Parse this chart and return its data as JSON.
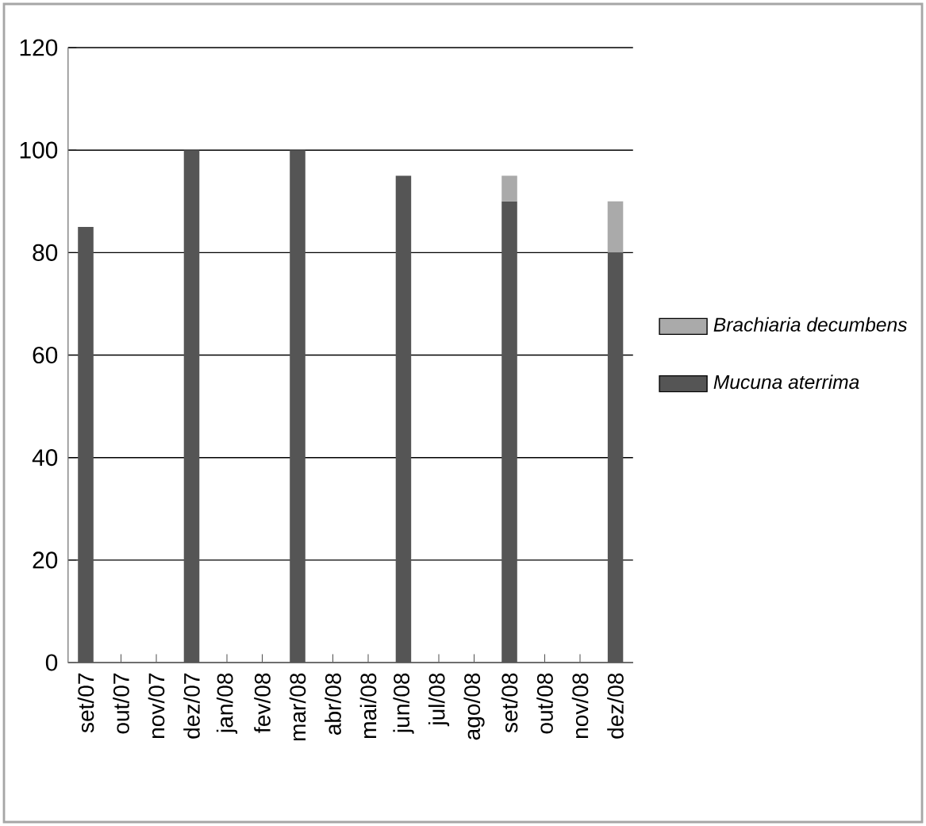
{
  "chart_data": {
    "type": "bar",
    "stacked": true,
    "categories": [
      "set/07",
      "out/07",
      "nov/07",
      "dez/07",
      "jan/08",
      "fev/08",
      "mar/08",
      "abr/08",
      "mai/08",
      "jun/08",
      "jul/08",
      "ago/08",
      "set/08",
      "out/08",
      "nov/08",
      "dez/08"
    ],
    "series": [
      {
        "name": "Mucuna aterrima",
        "color": "#555555",
        "values": [
          85,
          null,
          null,
          100,
          null,
          null,
          100,
          null,
          null,
          95,
          null,
          null,
          90,
          null,
          null,
          80
        ]
      },
      {
        "name": "Brachiaria decumbens",
        "color": "#aaaaaa",
        "values": [
          null,
          null,
          null,
          null,
          null,
          null,
          null,
          null,
          null,
          null,
          null,
          null,
          5,
          null,
          null,
          10
        ]
      }
    ],
    "ylim": [
      0,
      120
    ],
    "yticks": [
      0,
      20,
      40,
      60,
      80,
      100,
      120
    ],
    "grid": "y",
    "legend": "right"
  }
}
